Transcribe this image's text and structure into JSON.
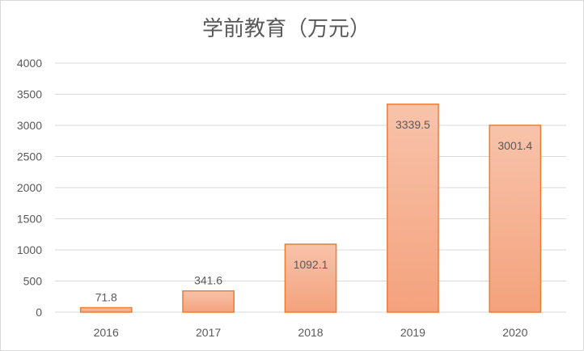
{
  "chart_data": {
    "type": "bar",
    "title": "学前教育（万元）",
    "xlabel": "",
    "ylabel": "",
    "categories": [
      "2016",
      "2017",
      "2018",
      "2019",
      "2020"
    ],
    "values": [
      71.8,
      341.6,
      1092.1,
      3339.5,
      3001.4
    ],
    "data_labels": [
      "71.8",
      "341.6",
      "1092.1",
      "3339.5",
      "3001.4"
    ],
    "ylim": [
      0,
      4000
    ],
    "yticks": [
      "0",
      "500",
      "1000",
      "1500",
      "2000",
      "2500",
      "3000",
      "3500",
      "4000"
    ],
    "grid": true,
    "legend": "none",
    "colors": {
      "bar_fill_top": "#f8c3ab",
      "bar_fill_bottom": "#f4a27c",
      "bar_stroke": "#ed7d31",
      "grid": "#d9d9d9",
      "text": "#595959"
    }
  }
}
